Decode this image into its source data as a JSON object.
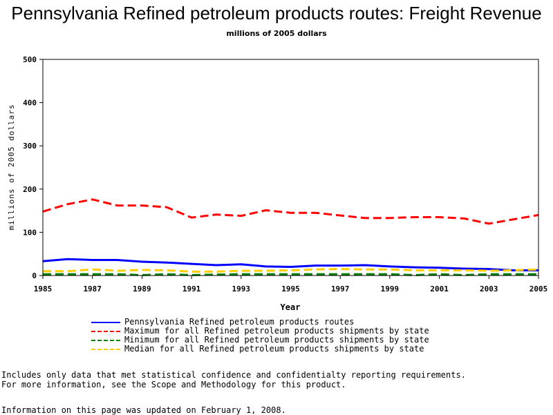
{
  "chart_data": {
    "type": "line",
    "title": "Pennsylvania Refined petroleum products routes: Freight Revenue",
    "subtitle": "millions of 2005 dollars",
    "xlabel": "Year",
    "ylabel": "millions of 2005 dollars",
    "xlim": [
      1985,
      2005
    ],
    "ylim": [
      0,
      500
    ],
    "x_ticks": [
      "1985",
      "1987",
      "1989",
      "1991",
      "1993",
      "1995",
      "1997",
      "1999",
      "2001",
      "2003",
      "2005"
    ],
    "y_ticks": [
      "0",
      "100",
      "200",
      "300",
      "400",
      "500"
    ],
    "x": [
      1985,
      1986,
      1987,
      1988,
      1989,
      1990,
      1991,
      1992,
      1993,
      1994,
      1995,
      1996,
      1997,
      1998,
      1999,
      2000,
      2001,
      2002,
      2003,
      2004,
      2005
    ],
    "series": [
      {
        "name": "Pennsylvania Refined petroleum products routes",
        "color": "#0000ff",
        "dash": "solid",
        "values": [
          33,
          38,
          36,
          36,
          32,
          30,
          27,
          24,
          26,
          21,
          20,
          23,
          23,
          24,
          21,
          19,
          18,
          16,
          15,
          12,
          12
        ]
      },
      {
        "name": "Maximum for all Refined petroleum products shipments by state",
        "color": "#ff0000",
        "dash": "dashed",
        "values": [
          148,
          165,
          176,
          162,
          162,
          158,
          134,
          141,
          138,
          151,
          145,
          145,
          139,
          133,
          133,
          135,
          135,
          132,
          120,
          130,
          140
        ]
      },
      {
        "name": "Minimum for all Refined petroleum products shipments by state",
        "color": "#008000",
        "dash": "dashed",
        "values": [
          3,
          3,
          3,
          3,
          1,
          3,
          1,
          2,
          3,
          3,
          3,
          3,
          3,
          3,
          3,
          1,
          3,
          1,
          3,
          3,
          3
        ]
      },
      {
        "name": "Median for all Refined petroleum products shipments by state",
        "color": "#ffcc00",
        "dash": "dashed",
        "values": [
          10,
          10,
          14,
          11,
          13,
          12,
          9,
          9,
          11,
          11,
          12,
          14,
          15,
          14,
          14,
          12,
          12,
          12,
          11,
          12,
          14
        ]
      }
    ]
  },
  "notes": [
    "Includes only data that met statistical confidence and confidentialty reporting requirements.",
    "For more information, see the Scope and Methodology for this product."
  ],
  "updated": "Information on this page was updated on February 1, 2008."
}
